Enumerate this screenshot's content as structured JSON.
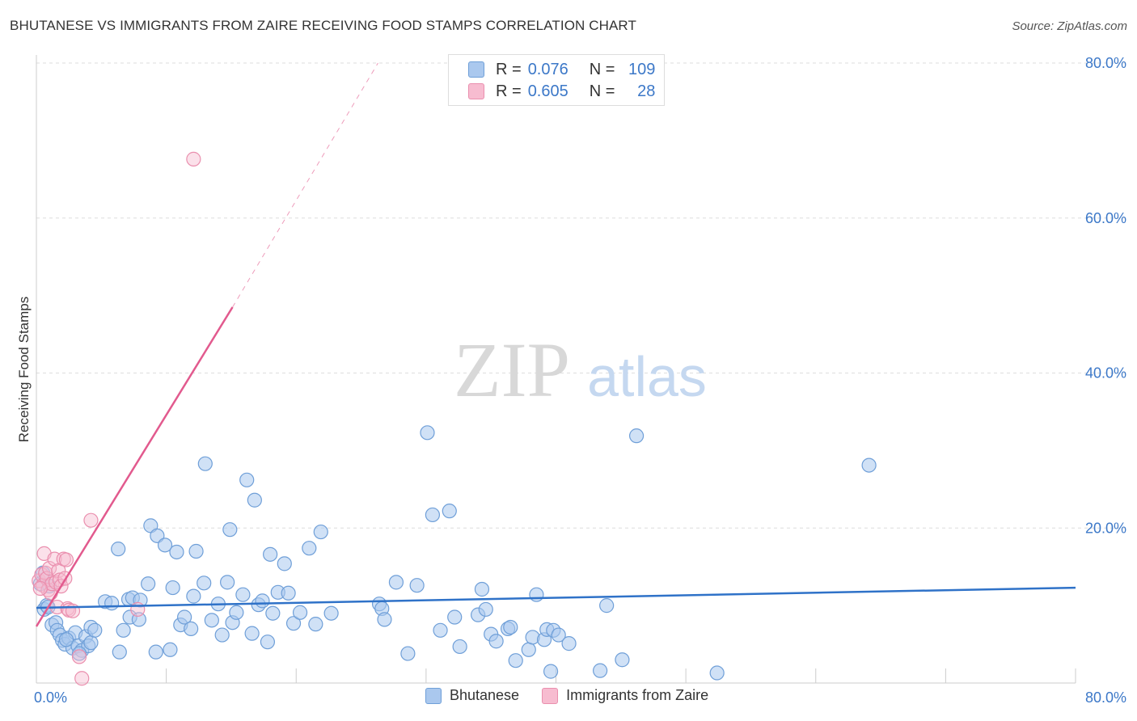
{
  "title": "BHUTANESE VS IMMIGRANTS FROM ZAIRE RECEIVING FOOD STAMPS CORRELATION CHART",
  "source": "Source: ZipAtlas.com",
  "watermark": {
    "zip": "ZIP",
    "atlas": "atlas"
  },
  "legend_top": {
    "rows": [
      {
        "r_label": "R =",
        "r_value": "0.076",
        "n_label": "N =",
        "n_value": "109"
      },
      {
        "r_label": "R =",
        "r_value": "0.605",
        "n_label": "N =",
        "n_value": "28"
      }
    ]
  },
  "legend_bottom": {
    "items": [
      "Bhutanese",
      "Immigrants from Zaire"
    ]
  },
  "colors": {
    "blue_fill": "#aac8ee",
    "blue_stroke": "#6f9fd8",
    "blue_line": "#2f72c8",
    "pink_fill": "#f7bcd0",
    "pink_stroke": "#ea8fae",
    "pink_line": "#e25a8e",
    "tick_text": "#3c78c8",
    "grid": "#dddddd"
  },
  "chart_data": {
    "type": "scatter",
    "title": "BHUTANESE VS IMMIGRANTS FROM ZAIRE RECEIVING FOOD STAMPS CORRELATION CHART",
    "xlabel": "",
    "ylabel": "Receiving Food Stamps",
    "xlim": [
      0,
      80
    ],
    "ylim": [
      0,
      80
    ],
    "x_tick_labels": [
      "0.0%",
      "80.0%"
    ],
    "y_ticks": [
      20,
      40,
      60,
      80
    ],
    "y_tick_labels": [
      "20.0%",
      "40.0%",
      "60.0%",
      "80.0%"
    ],
    "grid": true,
    "series": [
      {
        "name": "Bhutanese",
        "R": 0.076,
        "N": 109,
        "trend": {
          "x": [
            0,
            80
          ],
          "y": [
            9.7,
            12.3
          ],
          "dashed_to": null
        },
        "points": [
          [
            0.3,
            12.8
          ],
          [
            0.5,
            14.2
          ],
          [
            0.6,
            9.5
          ],
          [
            0.8,
            10.0
          ],
          [
            1.0,
            12.5
          ],
          [
            1.2,
            7.5
          ],
          [
            1.5,
            7.8
          ],
          [
            1.6,
            6.8
          ],
          [
            1.8,
            6.2
          ],
          [
            2.0,
            5.5
          ],
          [
            2.2,
            5.0
          ],
          [
            2.5,
            5.8
          ],
          [
            2.8,
            4.5
          ],
          [
            3.0,
            6.5
          ],
          [
            3.2,
            4.8
          ],
          [
            3.5,
            4.2
          ],
          [
            3.8,
            6.0
          ],
          [
            4.0,
            4.8
          ],
          [
            4.2,
            5.2
          ],
          [
            2.3,
            5.6
          ],
          [
            4.2,
            7.2
          ],
          [
            4.5,
            6.8
          ],
          [
            5.3,
            10.5
          ],
          [
            5.8,
            10.3
          ],
          [
            6.3,
            17.3
          ],
          [
            6.4,
            4.0
          ],
          [
            6.7,
            6.8
          ],
          [
            7.1,
            10.8
          ],
          [
            7.2,
            8.5
          ],
          [
            7.4,
            11.0
          ],
          [
            7.9,
            8.2
          ],
          [
            8.0,
            10.7
          ],
          [
            8.6,
            12.8
          ],
          [
            8.8,
            20.3
          ],
          [
            9.2,
            4.0
          ],
          [
            9.3,
            19.0
          ],
          [
            9.9,
            17.8
          ],
          [
            10.3,
            4.3
          ],
          [
            10.5,
            12.3
          ],
          [
            10.8,
            16.9
          ],
          [
            11.1,
            7.5
          ],
          [
            11.4,
            8.5
          ],
          [
            11.9,
            7.0
          ],
          [
            12.1,
            11.2
          ],
          [
            12.3,
            17.0
          ],
          [
            12.9,
            12.9
          ],
          [
            13.0,
            28.3
          ],
          [
            13.5,
            8.1
          ],
          [
            14.0,
            10.2
          ],
          [
            14.3,
            6.2
          ],
          [
            14.7,
            13.0
          ],
          [
            14.9,
            19.8
          ],
          [
            15.1,
            7.8
          ],
          [
            15.4,
            9.1
          ],
          [
            15.9,
            11.4
          ],
          [
            16.2,
            26.2
          ],
          [
            16.6,
            6.4
          ],
          [
            16.8,
            23.6
          ],
          [
            17.1,
            10.1
          ],
          [
            17.4,
            10.6
          ],
          [
            17.8,
            5.3
          ],
          [
            18.0,
            16.6
          ],
          [
            18.2,
            9.0
          ],
          [
            18.6,
            11.7
          ],
          [
            19.1,
            15.4
          ],
          [
            19.4,
            11.6
          ],
          [
            19.8,
            7.7
          ],
          [
            20.3,
            9.1
          ],
          [
            21.0,
            17.4
          ],
          [
            21.5,
            7.6
          ],
          [
            21.9,
            19.5
          ],
          [
            22.7,
            9.0
          ],
          [
            26.4,
            10.2
          ],
          [
            26.6,
            9.6
          ],
          [
            26.8,
            8.2
          ],
          [
            27.7,
            13.0
          ],
          [
            28.6,
            3.8
          ],
          [
            29.3,
            12.6
          ],
          [
            30.1,
            32.3
          ],
          [
            30.5,
            21.7
          ],
          [
            31.1,
            6.8
          ],
          [
            31.8,
            22.2
          ],
          [
            32.2,
            8.5
          ],
          [
            32.6,
            4.7
          ],
          [
            34.0,
            8.8
          ],
          [
            34.3,
            12.1
          ],
          [
            34.6,
            9.5
          ],
          [
            35.0,
            6.3
          ],
          [
            35.4,
            5.4
          ],
          [
            36.3,
            7.0
          ],
          [
            36.5,
            7.2
          ],
          [
            36.9,
            2.9
          ],
          [
            37.9,
            4.3
          ],
          [
            38.2,
            5.9
          ],
          [
            38.5,
            11.4
          ],
          [
            39.1,
            5.6
          ],
          [
            39.3,
            6.9
          ],
          [
            39.6,
            1.5
          ],
          [
            39.8,
            6.8
          ],
          [
            40.2,
            6.2
          ],
          [
            41.0,
            5.1
          ],
          [
            43.4,
            1.6
          ],
          [
            43.9,
            10.0
          ],
          [
            45.1,
            3.0
          ],
          [
            46.2,
            31.9
          ],
          [
            52.4,
            1.3
          ],
          [
            64.1,
            28.1
          ],
          [
            0.9,
            9.8
          ],
          [
            3.3,
            3.8
          ]
        ]
      },
      {
        "name": "Immigrants from Zaire",
        "R": 0.605,
        "N": 28,
        "trend": {
          "x": [
            0,
            15.1
          ],
          "y": [
            7.3,
            48.5
          ],
          "dashed_to": [
            26.3,
            80
          ]
        },
        "points": [
          [
            0.2,
            13.2
          ],
          [
            0.4,
            14.0
          ],
          [
            0.5,
            12.6
          ],
          [
            0.6,
            16.7
          ],
          [
            0.7,
            14.2
          ],
          [
            0.8,
            13.5
          ],
          [
            0.9,
            12.0
          ],
          [
            1.0,
            14.8
          ],
          [
            1.1,
            11.6
          ],
          [
            1.2,
            12.8
          ],
          [
            1.4,
            16.0
          ],
          [
            1.5,
            13.0
          ],
          [
            1.6,
            9.8
          ],
          [
            1.7,
            14.5
          ],
          [
            1.8,
            13.3
          ],
          [
            1.9,
            12.5
          ],
          [
            2.1,
            16.0
          ],
          [
            2.2,
            13.5
          ],
          [
            2.3,
            15.9
          ],
          [
            2.4,
            9.6
          ],
          [
            2.5,
            9.4
          ],
          [
            2.8,
            9.3
          ],
          [
            3.3,
            3.4
          ],
          [
            3.5,
            0.6
          ],
          [
            4.2,
            21.0
          ],
          [
            7.8,
            9.5
          ],
          [
            12.1,
            67.6
          ],
          [
            0.3,
            12.2
          ]
        ]
      }
    ]
  }
}
